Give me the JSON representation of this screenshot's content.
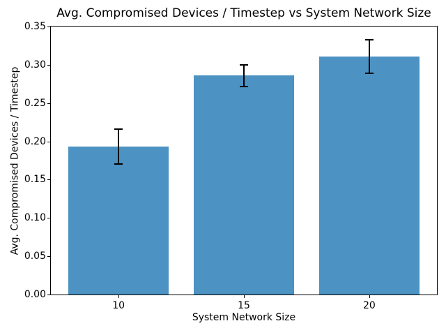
{
  "chart_data": {
    "type": "bar",
    "title": "Avg. Compromised Devices / Timestep vs System Network Size",
    "xlabel": "System Network Size",
    "ylabel": "Avg. Compromised Devices / Timestep",
    "categories": [
      "10",
      "15",
      "20"
    ],
    "x": [
      10,
      15,
      20
    ],
    "values": [
      0.193,
      0.286,
      0.311
    ],
    "errors": [
      0.023,
      0.014,
      0.022
    ],
    "bar_width_units": 4,
    "xlim": [
      7.3,
      22.7
    ],
    "ylim": [
      0.0,
      0.35
    ],
    "yticks": [
      0.0,
      0.05,
      0.1,
      0.15,
      0.2,
      0.25,
      0.3,
      0.35
    ],
    "ytick_labels": [
      "0.00",
      "0.05",
      "0.10",
      "0.15",
      "0.20",
      "0.25",
      "0.30",
      "0.35"
    ],
    "grid": false,
    "legend_position": "none",
    "bar_color": "#4C92C3",
    "error_color": "#000000",
    "spine_color": "#000000",
    "background_color": "#ffffff"
  }
}
